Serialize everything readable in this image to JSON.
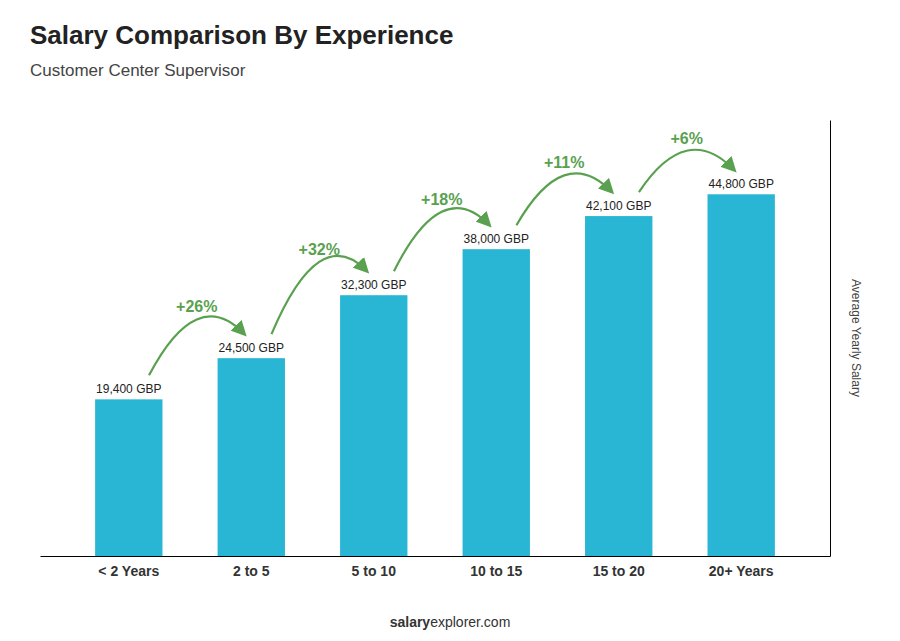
{
  "chart_data": {
    "type": "bar",
    "title": "Salary Comparison By Experience",
    "subtitle": "Customer Center Supervisor",
    "categories": [
      "< 2 Years",
      "2 to 5",
      "5 to 10",
      "10 to 15",
      "15 to 20",
      "20+ Years"
    ],
    "values": [
      19400,
      24500,
      32300,
      38000,
      42100,
      44800
    ],
    "value_labels": [
      "19,400 GBP",
      "24,500 GBP",
      "32,300 GBP",
      "38,000 GBP",
      "42,100 GBP",
      "44,800 GBP"
    ],
    "data_labels": true,
    "annotations": [
      "+26%",
      "+32%",
      "+18%",
      "+11%",
      "+6%"
    ],
    "color": "#29b6d4",
    "ylabel": "Average Yearly Salary",
    "footer": [
      "salary",
      "explorer.com"
    ],
    "ylim": [
      0,
      54000
    ],
    "tick_labels": "x",
    "grid": false
  }
}
